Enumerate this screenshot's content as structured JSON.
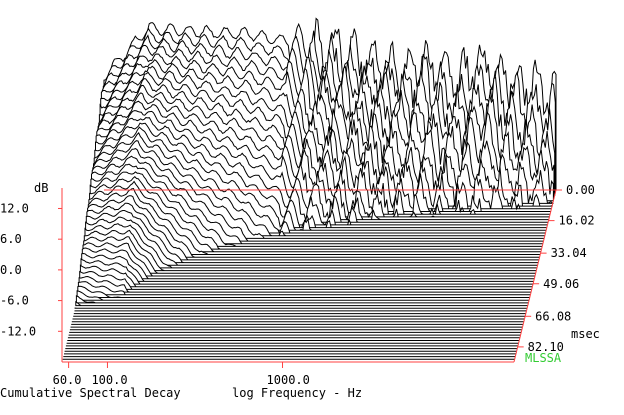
{
  "chart_data": {
    "type": "waterfall",
    "title": "Cumulative Spectral Decay",
    "xlabel": "log Frequency - Hz",
    "ylabel": "dB",
    "zlabel": "msec",
    "x_scale": "log",
    "xlim": [
      55,
      21000
    ],
    "ylim": [
      -18,
      16
    ],
    "x_ticks": [
      {
        "label": "60.0",
        "value": 60
      },
      {
        "label": "100.0",
        "value": 100
      },
      {
        "label": "1000.0",
        "value": 1000
      }
    ],
    "y_ticks": [
      {
        "label": "12.0",
        "value": 12
      },
      {
        "label": "6.0",
        "value": 6
      },
      {
        "label": "0.0",
        "value": 0
      },
      {
        "label": "-6.0",
        "value": -6
      },
      {
        "label": "-12.0",
        "value": -12
      }
    ],
    "time_ticks": [
      {
        "label": "0.00",
        "value": 0.0
      },
      {
        "label": "16.02",
        "value": 16.02
      },
      {
        "label": "33.04",
        "value": 33.04
      },
      {
        "label": "49.06",
        "value": 49.06
      },
      {
        "label": "66.08",
        "value": 66.08
      },
      {
        "label": "82.10",
        "value": 82.1
      }
    ],
    "time_unit_label": "msec",
    "brand_label": "MLSSA",
    "colors": {
      "trace": "#000000",
      "axis": "#ff4040",
      "brand": "#33cc33"
    }
  }
}
